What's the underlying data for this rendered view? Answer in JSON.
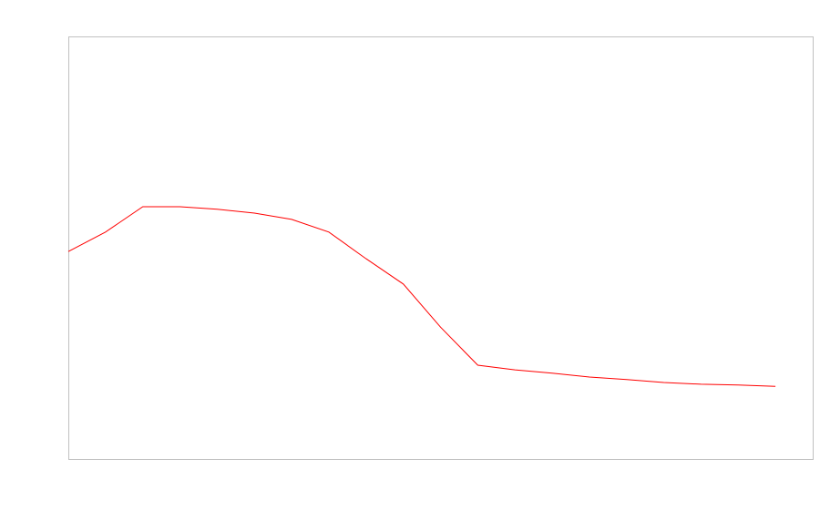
{
  "chart_data": {
    "type": "line",
    "title": "",
    "xlabel": "",
    "ylabel": "",
    "xlim": [
      0,
      20
    ],
    "ylim": [
      0,
      100
    ],
    "grid": false,
    "axes_visible": false,
    "frame_color": "#c0c0c0",
    "series": [
      {
        "color": "#ff0000",
        "x": [
          0,
          1,
          2,
          3,
          4,
          5,
          6,
          7,
          8,
          9,
          10,
          11,
          12,
          13,
          14,
          15,
          16,
          17,
          18,
          19
        ],
        "values": [
          49.1,
          53.7,
          59.7,
          59.7,
          59.1,
          58.2,
          56.7,
          53.7,
          47.4,
          41.4,
          31.2,
          22.2,
          21.1,
          20.3,
          19.4,
          18.8,
          18.1,
          17.7,
          17.5,
          17.2
        ]
      }
    ]
  }
}
